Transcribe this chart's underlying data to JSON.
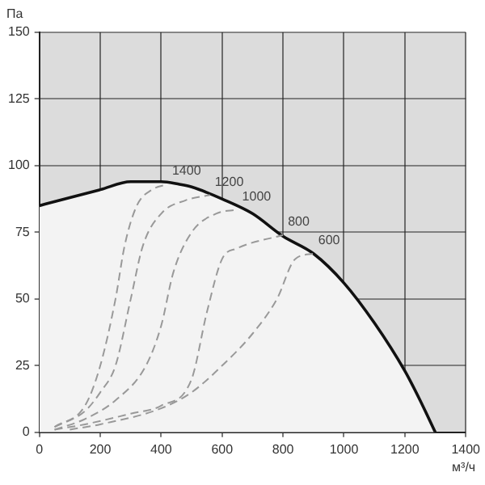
{
  "chart_data": {
    "type": "line",
    "xlabel": "м³/ч",
    "ylabel": "Па",
    "xlim": [
      0,
      1400
    ],
    "xticks": [
      0,
      200,
      400,
      600,
      800,
      1000,
      1200,
      1400
    ],
    "ylim": [
      0,
      150
    ],
    "yticks": [
      0,
      25,
      50,
      75,
      100,
      125,
      150
    ],
    "grid": true,
    "legend": false,
    "marker": "none",
    "series": [
      {
        "type": "area",
        "color": "#111111",
        "x": [
          0,
          100,
          200,
          300,
          400,
          460,
          500,
          600,
          700,
          800,
          900,
          1000,
          1100,
          1200,
          1250,
          1300
        ],
        "values": [
          85,
          88,
          91,
          94,
          94,
          93,
          92,
          87.5,
          82,
          73.5,
          67,
          56,
          41,
          23,
          12,
          0
        ]
      },
      {
        "name": "1400",
        "color": "#999999",
        "line_style": "dashed",
        "x": [
          50,
          150,
          200,
          250,
          280,
          320,
          370,
          420
        ],
        "values": [
          2,
          10,
          25,
          50,
          70,
          85,
          91,
          93
        ]
      },
      {
        "name": "1200",
        "color": "#999999",
        "line_style": "dashed",
        "x": [
          50,
          150,
          200,
          250,
          300,
          340,
          400,
          480,
          560
        ],
        "values": [
          2,
          8,
          15,
          25,
          50,
          70,
          82,
          87,
          89
        ]
      },
      {
        "name": "1000",
        "color": "#999999",
        "line_style": "dashed",
        "x": [
          50,
          150,
          250,
          350,
          400,
          440,
          500,
          580,
          650
        ],
        "values": [
          1,
          5,
          12,
          25,
          40,
          60,
          75,
          82,
          83.5
        ]
      },
      {
        "name": "800",
        "color": "#999999",
        "line_style": "dashed",
        "x": [
          50,
          150,
          300,
          400,
          500,
          550,
          600,
          650,
          800
        ],
        "values": [
          1,
          3,
          7,
          10,
          20,
          45,
          65,
          69,
          74
        ]
      },
      {
        "name": "600",
        "color": "#999999",
        "line_style": "dashed",
        "x": [
          100,
          200,
          400,
          500,
          600,
          700,
          780,
          840,
          900
        ],
        "values": [
          1,
          3,
          9,
          15,
          25,
          37,
          50,
          65,
          67
        ]
      }
    ]
  }
}
